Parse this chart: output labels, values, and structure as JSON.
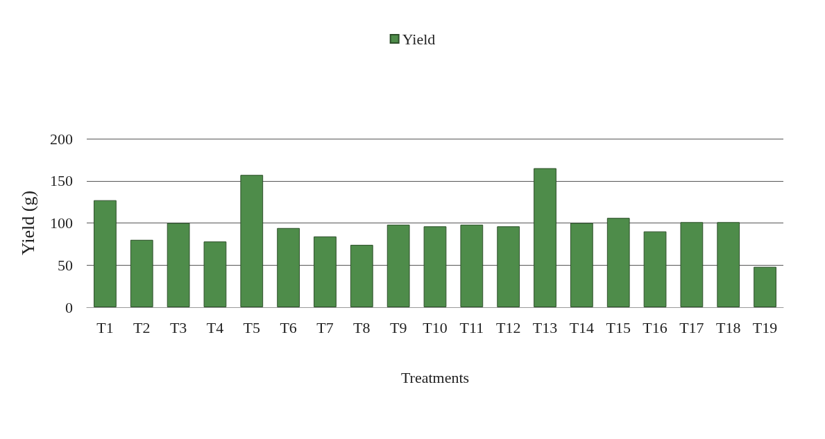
{
  "chart_data": {
    "type": "bar",
    "xlabel": "Treatments",
    "ylabel": "Yield (g)",
    "categories": [
      "T1",
      "T2",
      "T3",
      "T4",
      "T5",
      "T6",
      "T7",
      "T8",
      "T9",
      "T10",
      "T11",
      "T12",
      "T13",
      "T14",
      "T15",
      "T16",
      "T17",
      "T18",
      "T19"
    ],
    "series": [
      {
        "name": "Yield",
        "color": "#4e8c4a",
        "values": [
          127,
          80,
          100,
          78,
          157,
          94,
          84,
          74,
          98,
          96,
          98,
          96,
          165,
          100,
          106,
          90,
          101,
          101,
          48
        ]
      }
    ],
    "ylim": [
      0,
      200
    ],
    "yticks": [
      0,
      50,
      100,
      150,
      200
    ],
    "grid": "y",
    "legend": "top"
  }
}
